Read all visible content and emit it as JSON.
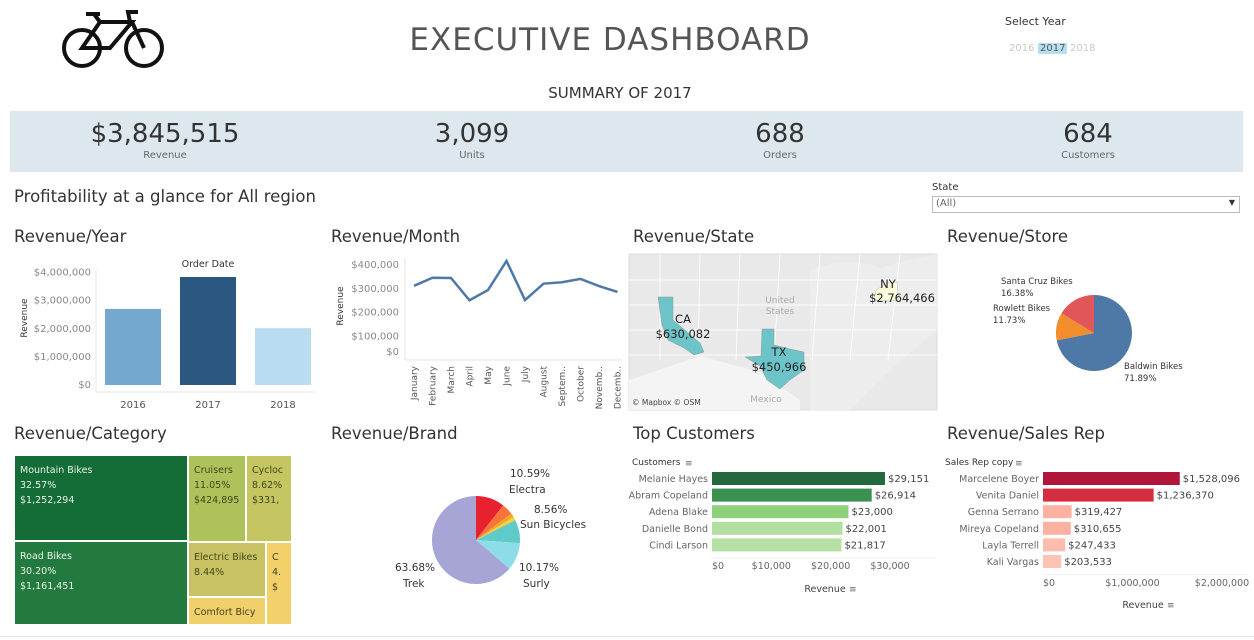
{
  "header": {
    "title": "EXECUTIVE DASHBOARD",
    "logo_icon": "bicycle-icon",
    "summary": "SUMMARY OF 2017"
  },
  "year_filter": {
    "label": "Select Year",
    "options": [
      "2016",
      "2017",
      "2018"
    ],
    "selected": "2017",
    "highlight_color": "#b6e0ef"
  },
  "kpis": [
    {
      "value": "$3,845,515",
      "label": "Revenue"
    },
    {
      "value": "3,099",
      "label": "Units"
    },
    {
      "value": "688",
      "label": "Orders"
    },
    {
      "value": "684",
      "label": "Customers"
    }
  ],
  "subtitle": "Profitability at a glance for All region",
  "state_filter": {
    "label": "State",
    "value": "(All)"
  },
  "panels": {
    "year": "Revenue/Year",
    "month": "Revenue/Month",
    "state": "Revenue/State",
    "store": "Revenue/Store",
    "category": "Revenue/Category",
    "brand": "Revenue/Brand",
    "customers": "Top Customers",
    "salesrep": "Revenue/Sales Rep"
  },
  "chart_data": [
    {
      "id": "year",
      "type": "bar",
      "header": "Order Date",
      "ylabel": "Revenue",
      "categories": [
        "2016",
        "2017",
        "2018"
      ],
      "values": [
        2709484,
        3845515,
        2023989
      ],
      "ylim": [
        0,
        4000000
      ],
      "yticks": [
        "$0",
        "$1,000,000",
        "$2,000,000",
        "$3,000,000",
        "$4,000,000"
      ],
      "colors": [
        "#75a8cf",
        "#2c5781",
        "#b9dcf0"
      ]
    },
    {
      "id": "month",
      "type": "line",
      "ylabel": "Revenue",
      "categories": [
        "January",
        "February",
        "March",
        "April",
        "May",
        "June",
        "July",
        "August",
        "Septem..",
        "October",
        "Novemb..",
        "Decemb.."
      ],
      "values": [
        313000,
        347000,
        346000,
        252000,
        295000,
        418000,
        253000,
        322000,
        328000,
        342000,
        312000,
        287000
      ],
      "ylim": [
        0,
        400000
      ],
      "yticks": [
        "$0",
        "$100,000",
        "$200,000",
        "$300,000",
        "$400,000"
      ],
      "color": "#4e79a7"
    },
    {
      "id": "state",
      "type": "map",
      "regions": [
        {
          "state": "CA",
          "value": "$630,082",
          "color": "#6cc3c8"
        },
        {
          "state": "TX",
          "value": "$450,966",
          "color": "#6cc3c8"
        },
        {
          "state": "NY",
          "value": "$2,764,466",
          "color": "#fbfbd9"
        }
      ],
      "basemap_labels": [
        "United",
        "States",
        "Mexico"
      ],
      "attribution": "© Mapbox  © OSM"
    },
    {
      "id": "store",
      "type": "pie",
      "slices": [
        {
          "name": "Baldwin Bikes",
          "label": "71.89%",
          "value": 71.89,
          "color": "#4e79a7"
        },
        {
          "name": "Rowlett Bikes",
          "label": "11.73%",
          "value": 11.73,
          "color": "#f28e2b"
        },
        {
          "name": "Santa Cruz Bikes",
          "label": "16.38%",
          "value": 16.38,
          "color": "#e15759"
        }
      ]
    },
    {
      "id": "category",
      "type": "treemap",
      "cells": [
        {
          "lines": [
            "Mountain Bikes",
            "32.57%",
            "$1,252,294"
          ],
          "value": 32.57,
          "color": "#146c36",
          "text": "#e8f3e8"
        },
        {
          "lines": [
            "Road Bikes",
            "30.20%",
            "$1,161,451"
          ],
          "value": 30.2,
          "color": "#237a3f",
          "text": "#e8f3e8"
        },
        {
          "lines": [
            "Cruisers",
            "11.05%",
            "$424,895"
          ],
          "value": 11.05,
          "color": "#adc25a",
          "text": "#3d4a1a"
        },
        {
          "lines": [
            "Cycloc",
            "8.62%",
            "$331,"
          ],
          "value": 8.62,
          "color": "#c5c562",
          "text": "#3d4a1a"
        },
        {
          "lines": [
            "Electric Bikes",
            "8.44%"
          ],
          "value": 8.44,
          "color": "#c8c264",
          "text": "#3d4a1a"
        },
        {
          "lines": [
            "Comfort Bicy"
          ],
          "color": "#efd06a",
          "text": "#4a4020"
        },
        {
          "lines": [
            "C",
            "4.",
            "$"
          ],
          "color": "#f2d16a",
          "text": "#4a4020"
        }
      ]
    },
    {
      "id": "brand",
      "type": "pie",
      "slices": [
        {
          "name": "Electra",
          "label": "10.59%",
          "value": 10.59,
          "color": "#e8212f"
        },
        {
          "value": 4.2,
          "color": "#f8733c"
        },
        {
          "value": 1.5,
          "color": "#f5a623"
        },
        {
          "value": 1.3,
          "color": "#f2d23c"
        },
        {
          "name": "Sun Bicycles",
          "label": "8.56%",
          "value": 8.56,
          "color": "#5fcbc8"
        },
        {
          "name": "Surly",
          "label": "10.17%",
          "value": 10.17,
          "color": "#8ddde8"
        },
        {
          "name": "Trek",
          "label": "63.68%",
          "value": 63.68,
          "color": "#a7a5d6"
        }
      ]
    },
    {
      "id": "customers",
      "type": "bar",
      "orientation": "horizontal",
      "header": "Customers",
      "xlabel": "Revenue",
      "categories": [
        "Melanie Hayes",
        "Abram Copeland",
        "Adena Blake",
        "Danielle Bond",
        "Cindi Larson"
      ],
      "values": [
        29151,
        26914,
        23000,
        22001,
        21817
      ],
      "labels": [
        "$29,151",
        "$26,914",
        "$23,000",
        "$22,001",
        "$21,817"
      ],
      "xticks": [
        "$0",
        "$10,000",
        "$20,000",
        "$30,000"
      ],
      "xlim": [
        0,
        30000
      ],
      "colors": [
        "#24693d",
        "#3c9150",
        "#8fd17b",
        "#b2dea0",
        "#b5e0a4"
      ]
    },
    {
      "id": "salesrep",
      "type": "bar",
      "orientation": "horizontal",
      "header": "Sales Rep copy",
      "xlabel": "Revenue",
      "categories": [
        "Marcelene Boyer",
        "Venita Daniel",
        "Genna Serrano",
        "Mireya Copeland",
        "Layla Terrell",
        "Kali Vargas"
      ],
      "values": [
        1528096,
        1236370,
        319427,
        310655,
        247433,
        203533
      ],
      "labels": [
        "$1,528,096",
        "$1,236,370",
        "$319,427",
        "$310,655",
        "$247,433",
        "$203,533"
      ],
      "xticks": [
        "$0",
        "$1,000,000",
        "$2,000,000"
      ],
      "xlim": [
        0,
        2000000
      ],
      "colors": [
        "#b0163a",
        "#d52d40",
        "#fdb1a3",
        "#fdb1a3",
        "#fdbcae",
        "#fdc4b6"
      ]
    }
  ]
}
